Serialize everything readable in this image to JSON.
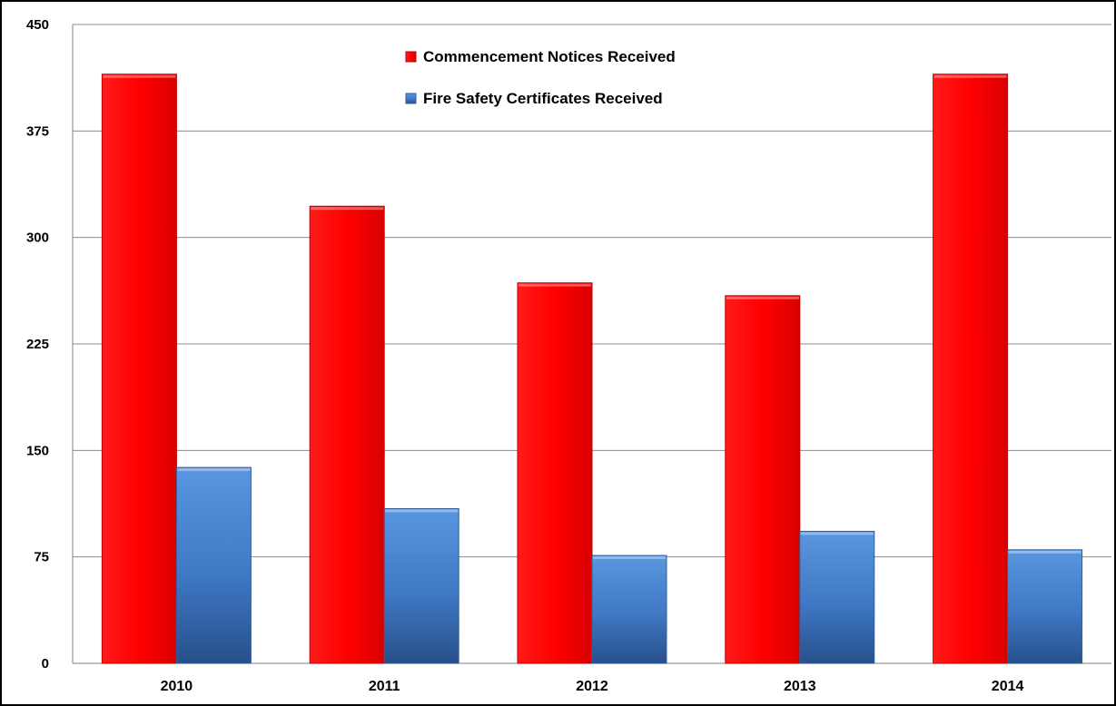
{
  "chart_data": {
    "type": "bar",
    "title": "",
    "xlabel": "",
    "ylabel": "",
    "categories": [
      "2010",
      "2011",
      "2012",
      "2013",
      "2014"
    ],
    "ylim": [
      0,
      450
    ],
    "yticks": [
      0,
      75,
      150,
      225,
      300,
      375,
      450
    ],
    "grid": true,
    "legend_position": "top-center",
    "series": [
      {
        "name": "Commencement Notices Received",
        "color": "#ff0000",
        "values": [
          415,
          322,
          268,
          259,
          415
        ]
      },
      {
        "name": "Fire Safety Certificates Received",
        "color": "#4a86d6",
        "values": [
          138,
          109,
          76,
          93,
          80
        ]
      }
    ]
  }
}
